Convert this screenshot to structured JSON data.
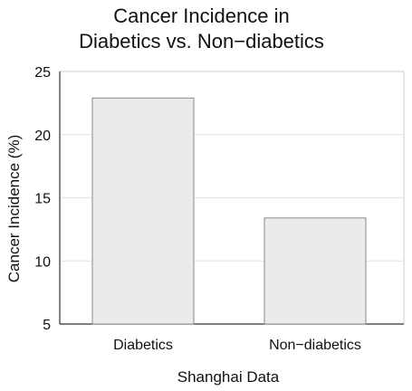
{
  "chart_data": {
    "type": "bar",
    "title": [
      "Cancer Incidence in",
      "Diabetics vs. Non−diabetics"
    ],
    "categories": [
      "Diabetics",
      "Non−diabetics"
    ],
    "values": [
      22.9,
      13.4
    ],
    "xlabel": "Shanghai Data",
    "ylabel": "Cancer Incidence (%)",
    "ylim": [
      5,
      25
    ],
    "yticks": [
      "5",
      "10",
      "15",
      "20",
      "25"
    ],
    "grid": "horizontal",
    "legend": "none",
    "colors": {
      "bar_fill": "#ebebeb",
      "bar_stroke": "#8a8a8a",
      "grid": "#e3e3e3",
      "axis": "#333333"
    }
  }
}
